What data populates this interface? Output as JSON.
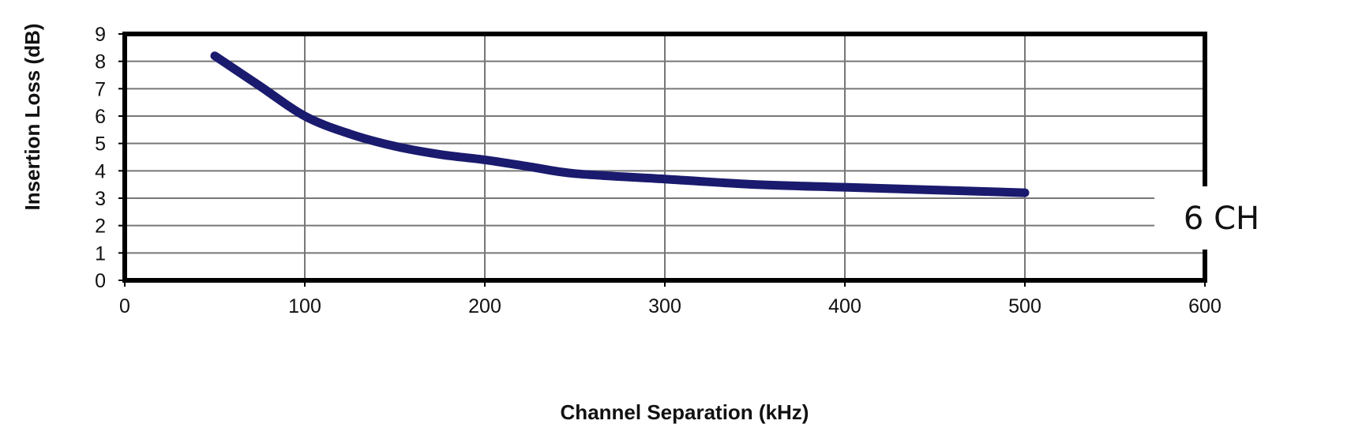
{
  "chart_data": {
    "type": "line",
    "title": "",
    "xlabel": "Channel Separation (kHz)",
    "ylabel": "Insertion Loss (dB)",
    "xlim": [
      0,
      600
    ],
    "ylim": [
      0,
      9
    ],
    "xticks": [
      0,
      100,
      200,
      300,
      400,
      500,
      600
    ],
    "yticks": [
      0,
      1,
      2,
      3,
      4,
      5,
      6,
      7,
      8,
      9
    ],
    "grid": true,
    "series": [
      {
        "name": "6 CH",
        "color": "#1a1a6e",
        "x": [
          50,
          75,
          100,
          125,
          150,
          175,
          200,
          225,
          250,
          300,
          350,
          400,
          450,
          500
        ],
        "y": [
          8.2,
          7.1,
          6.0,
          5.35,
          4.9,
          4.6,
          4.4,
          4.15,
          3.9,
          3.7,
          3.5,
          3.4,
          3.3,
          3.2
        ]
      }
    ]
  }
}
